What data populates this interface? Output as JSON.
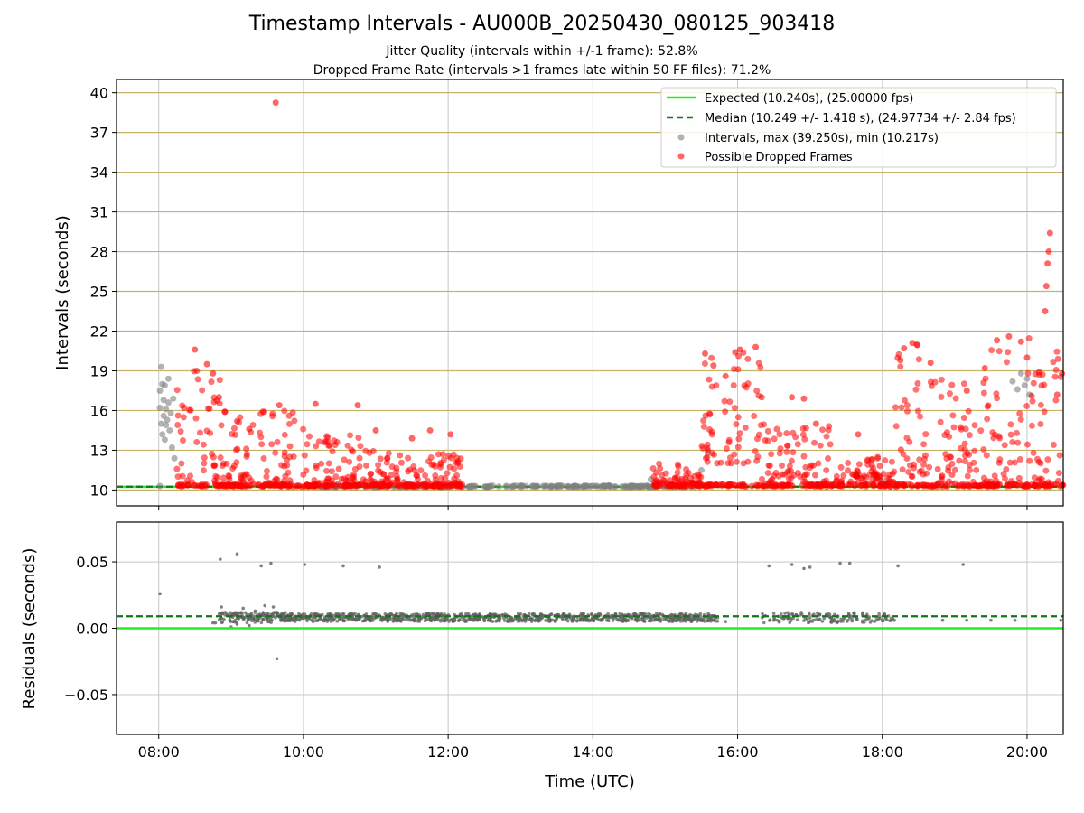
{
  "title": "Timestamp Intervals - AU000B_20250430_080125_903418",
  "subtitles": [
    "Jitter Quality (intervals within +/-1 frame): 52.8%",
    "Dropped Frame Rate (intervals >1 frames late within 50 FF files): 71.2%"
  ],
  "colors": {
    "expected": "#22ee22",
    "median": "#117711",
    "intervals": "#808080",
    "dropped": "#ff0000",
    "hgrid": "#c8b468",
    "grid": "#c8c8c8"
  },
  "chart_data": [
    {
      "type": "scatter",
      "xlabel": "",
      "ylabel": "Intervals (seconds)",
      "xlim": [
        "07:25",
        "20:30"
      ],
      "ylim": [
        8.8,
        41.0
      ],
      "yticks": [
        10,
        13,
        16,
        19,
        22,
        25,
        28,
        31,
        34,
        37,
        40
      ],
      "xticks": [
        "08:00",
        "10:00",
        "12:00",
        "14:00",
        "16:00",
        "18:00",
        "20:00"
      ],
      "grid": true,
      "legend_position": "top-right",
      "lines": [
        {
          "name": "Expected (10.240s), (25.00000 fps)",
          "y": 10.24,
          "style": "solid"
        },
        {
          "name": "Median (10.249 +/- 1.418 s), (24.97734 +/- 2.84 fps)",
          "y": 10.249,
          "style": "dashed"
        }
      ],
      "series": [
        {
          "name": "Intervals, max (39.250s), min (10.217s)",
          "points": [
            [
              "08:01",
              17.5
            ],
            [
              "08:01",
              16.2
            ],
            [
              "08:02",
              19.3
            ],
            [
              "08:02",
              15.0
            ],
            [
              "08:03",
              18.0
            ],
            [
              "08:03",
              14.2
            ],
            [
              "08:04",
              16.8
            ],
            [
              "08:04",
              15.6
            ],
            [
              "08:05",
              17.9
            ],
            [
              "08:05",
              13.8
            ],
            [
              "08:06",
              16.1
            ],
            [
              "08:06",
              14.9
            ],
            [
              "08:07",
              15.3
            ],
            [
              "08:08",
              18.4
            ],
            [
              "08:08",
              16.6
            ],
            [
              "08:09",
              14.5
            ],
            [
              "08:10",
              15.8
            ],
            [
              "08:11",
              13.2
            ],
            [
              "08:12",
              16.9
            ],
            [
              "08:13",
              12.4
            ],
            [
              "08:01",
              10.3
            ],
            [
              "14:48",
              10.8
            ],
            [
              "14:52",
              10.6
            ],
            [
              "15:30",
              11.5
            ],
            [
              "15:35",
              12.8
            ],
            [
              "17:57",
              10.9
            ],
            [
              "18:00",
              10.7
            ],
            [
              "19:48",
              18.2
            ],
            [
              "19:52",
              17.6
            ],
            [
              "19:55",
              18.8
            ],
            [
              "19:58",
              17.9
            ],
            [
              "20:00",
              18.4
            ],
            [
              "20:02",
              17.2
            ]
          ]
        },
        {
          "name": "Possible Dropped Frames",
          "points": [
            [
              "09:37",
              39.25
            ],
            [
              "20:19",
              29.4
            ],
            [
              "20:18",
              28.0
            ],
            [
              "20:17",
              27.1
            ],
            [
              "20:16",
              25.4
            ],
            [
              "20:15",
              23.5
            ],
            [
              "08:30",
              20.6
            ],
            [
              "08:40",
              19.5
            ],
            [
              "08:45",
              18.8
            ],
            [
              "08:50",
              17.0
            ],
            [
              "08:55",
              15.9
            ],
            [
              "09:05",
              15.2
            ],
            [
              "09:15",
              14.6
            ],
            [
              "09:40",
              16.4
            ],
            [
              "10:10",
              16.5
            ],
            [
              "10:45",
              16.4
            ],
            [
              "11:00",
              14.5
            ],
            [
              "11:30",
              13.9
            ],
            [
              "11:45",
              14.5
            ],
            [
              "12:02",
              14.2
            ],
            [
              "15:33",
              20.3
            ],
            [
              "15:40",
              19.4
            ],
            [
              "15:50",
              18.6
            ],
            [
              "15:58",
              20.4
            ],
            [
              "16:02",
              20.6
            ],
            [
              "16:15",
              20.8
            ],
            [
              "16:20",
              17.0
            ],
            [
              "16:45",
              17.0
            ],
            [
              "16:55",
              16.9
            ],
            [
              "17:05",
              15.0
            ],
            [
              "17:40",
              14.2
            ],
            [
              "18:15",
              19.8
            ],
            [
              "18:18",
              20.7
            ],
            [
              "18:25",
              21.1
            ],
            [
              "18:40",
              19.6
            ],
            [
              "19:10",
              17.5
            ],
            [
              "19:25",
              19.2
            ],
            [
              "19:35",
              21.3
            ],
            [
              "19:45",
              21.6
            ],
            [
              "19:55",
              21.2
            ],
            [
              "20:00",
              20.0
            ],
            [
              "20:10",
              18.9
            ],
            [
              "20:25",
              17.2
            ],
            [
              "20:29",
              18.8
            ]
          ]
        }
      ],
      "dropped_frame_clusters": [
        {
          "from": "08:15",
          "to": "08:55",
          "y_min": 10.3,
          "y_max": 19.5
        },
        {
          "from": "08:55",
          "to": "10:00",
          "y_min": 10.3,
          "y_max": 16.0
        },
        {
          "from": "10:00",
          "to": "11:00",
          "y_min": 10.3,
          "y_max": 14.5
        },
        {
          "from": "11:00",
          "to": "12:12",
          "y_min": 10.3,
          "y_max": 12.8
        },
        {
          "from": "14:50",
          "to": "15:30",
          "y_min": 10.3,
          "y_max": 12.0
        },
        {
          "from": "15:30",
          "to": "16:20",
          "y_min": 12.0,
          "y_max": 20.5
        },
        {
          "from": "16:20",
          "to": "17:20",
          "y_min": 10.3,
          "y_max": 15.0
        },
        {
          "from": "17:20",
          "to": "18:10",
          "y_min": 10.3,
          "y_max": 12.5
        },
        {
          "from": "18:10",
          "to": "18:40",
          "y_min": 11.0,
          "y_max": 21.0
        },
        {
          "from": "18:40",
          "to": "19:30",
          "y_min": 10.3,
          "y_max": 18.5
        },
        {
          "from": "19:30",
          "to": "20:30",
          "y_min": 10.3,
          "y_max": 21.5
        }
      ]
    },
    {
      "type": "scatter",
      "xlabel": "Time (UTC)",
      "ylabel": "Residuals (seconds)",
      "xlim": [
        "07:25",
        "20:30"
      ],
      "ylim": [
        -0.08,
        0.08
      ],
      "yticks": [
        -0.05,
        0.0,
        0.05
      ],
      "ytick_labels": [
        "−0.05",
        "0.00",
        "0.05"
      ],
      "xticks": [
        "08:00",
        "10:00",
        "12:00",
        "14:00",
        "16:00",
        "18:00",
        "20:00"
      ],
      "grid": true,
      "lines": [
        {
          "name": "expected",
          "y": 0.0,
          "style": "solid"
        },
        {
          "name": "median",
          "y": 0.009,
          "style": "dashed"
        }
      ],
      "points": [
        [
          "08:01",
          0.026
        ],
        [
          "08:51",
          0.052
        ],
        [
          "09:05",
          0.056
        ],
        [
          "09:25",
          0.047
        ],
        [
          "09:33",
          0.049
        ],
        [
          "10:01",
          0.048
        ],
        [
          "10:33",
          0.047
        ],
        [
          "11:03",
          0.046
        ],
        [
          "09:38",
          -0.023
        ],
        [
          "16:26",
          0.047
        ],
        [
          "16:45",
          0.048
        ],
        [
          "16:55",
          0.045
        ],
        [
          "17:00",
          0.046
        ],
        [
          "17:25",
          0.049
        ],
        [
          "17:33",
          0.049
        ],
        [
          "18:13",
          0.047
        ],
        [
          "19:07",
          0.048
        ],
        [
          "08:52",
          0.016
        ],
        [
          "08:55",
          0.012
        ],
        [
          "09:10",
          0.015
        ],
        [
          "09:20",
          0.013
        ],
        [
          "09:28",
          0.017
        ],
        [
          "09:35",
          0.016
        ],
        [
          "09:38",
          0.012
        ],
        [
          "08:45",
          0.004
        ],
        [
          "08:47",
          0.004
        ],
        [
          "09:00",
          0.001
        ],
        [
          "09:05",
          0.003
        ],
        [
          "09:15",
          0.002
        ],
        [
          "15:50",
          0.005
        ],
        [
          "16:30",
          0.006
        ],
        [
          "17:55",
          0.006
        ],
        [
          "18:10",
          0.006
        ],
        [
          "18:50",
          0.006
        ],
        [
          "19:10",
          0.006
        ],
        [
          "19:30",
          0.006
        ],
        [
          "19:50",
          0.006
        ],
        [
          "20:28",
          0.006
        ]
      ],
      "residual_band": {
        "from": "09:40",
        "to": "15:45",
        "y_min": 0.005,
        "y_max": 0.011
      }
    }
  ]
}
